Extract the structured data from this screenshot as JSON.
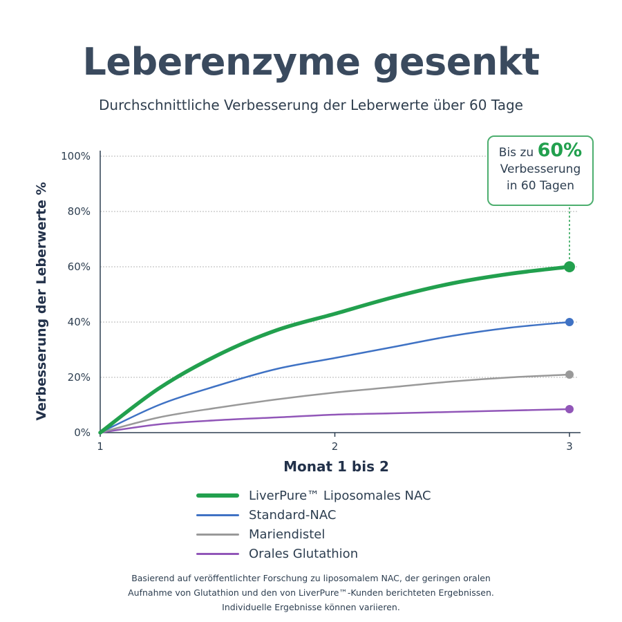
{
  "header": {
    "title": "Leberenzyme gesenkt",
    "subtitle": "Durchschnittliche Verbesserung der Leberwerte über 60 Tage"
  },
  "callout": {
    "prefix": "Bis zu",
    "value": "60%",
    "line2": "Verbesserung",
    "line3": "in 60 Tagen",
    "border_color": "#4cae6e"
  },
  "chart_data": {
    "type": "line",
    "xlabel": "Monat 1 bis 2",
    "ylabel": "Verbesserung der Leberwerte %",
    "x_ticks": [
      "1",
      "2",
      "3"
    ],
    "xlim": [
      1,
      3
    ],
    "ylim": [
      0,
      100
    ],
    "y_ticks": [
      "0%",
      "20%",
      "40%",
      "60%",
      "80%",
      "100%"
    ],
    "grid": "horizontal dotted",
    "legend": "bottom",
    "series": [
      {
        "name": "LiverPure™ Liposomales NAC",
        "color": "#22a04e",
        "x": [
          1,
          1.25,
          1.5,
          1.75,
          2,
          2.25,
          2.5,
          2.75,
          3
        ],
        "y": [
          0,
          16,
          28,
          37,
          43,
          49,
          54,
          57.5,
          60
        ]
      },
      {
        "name": "Standard-NAC",
        "color": "#3f72c4",
        "x": [
          1,
          1.25,
          1.5,
          1.75,
          2,
          2.25,
          2.5,
          2.75,
          3
        ],
        "y": [
          0,
          10,
          17,
          23,
          27,
          31,
          35,
          38,
          40
        ]
      },
      {
        "name": "Mariendistel",
        "color": "#999999",
        "x": [
          1,
          1.25,
          1.5,
          1.75,
          2,
          2.25,
          2.5,
          2.75,
          3
        ],
        "y": [
          0,
          5.5,
          9,
          12,
          14.5,
          16.5,
          18.5,
          20,
          21
        ]
      },
      {
        "name": "Orales Glutathion",
        "color": "#9156b8",
        "x": [
          1,
          1.25,
          1.5,
          1.75,
          2,
          2.25,
          2.5,
          2.75,
          3
        ],
        "y": [
          0,
          3,
          4.5,
          5.5,
          6.5,
          7,
          7.5,
          8,
          8.5
        ]
      }
    ]
  },
  "footnote": {
    "line1": "Basierend auf veröffentlichter Forschung zu liposomalem NAC, der geringen oralen",
    "line2": "Aufnahme von Glutathion und den von LiverPure™-Kunden berichteten Ergebnissen.",
    "line3": "Individuelle Ergebnisse können variieren."
  }
}
